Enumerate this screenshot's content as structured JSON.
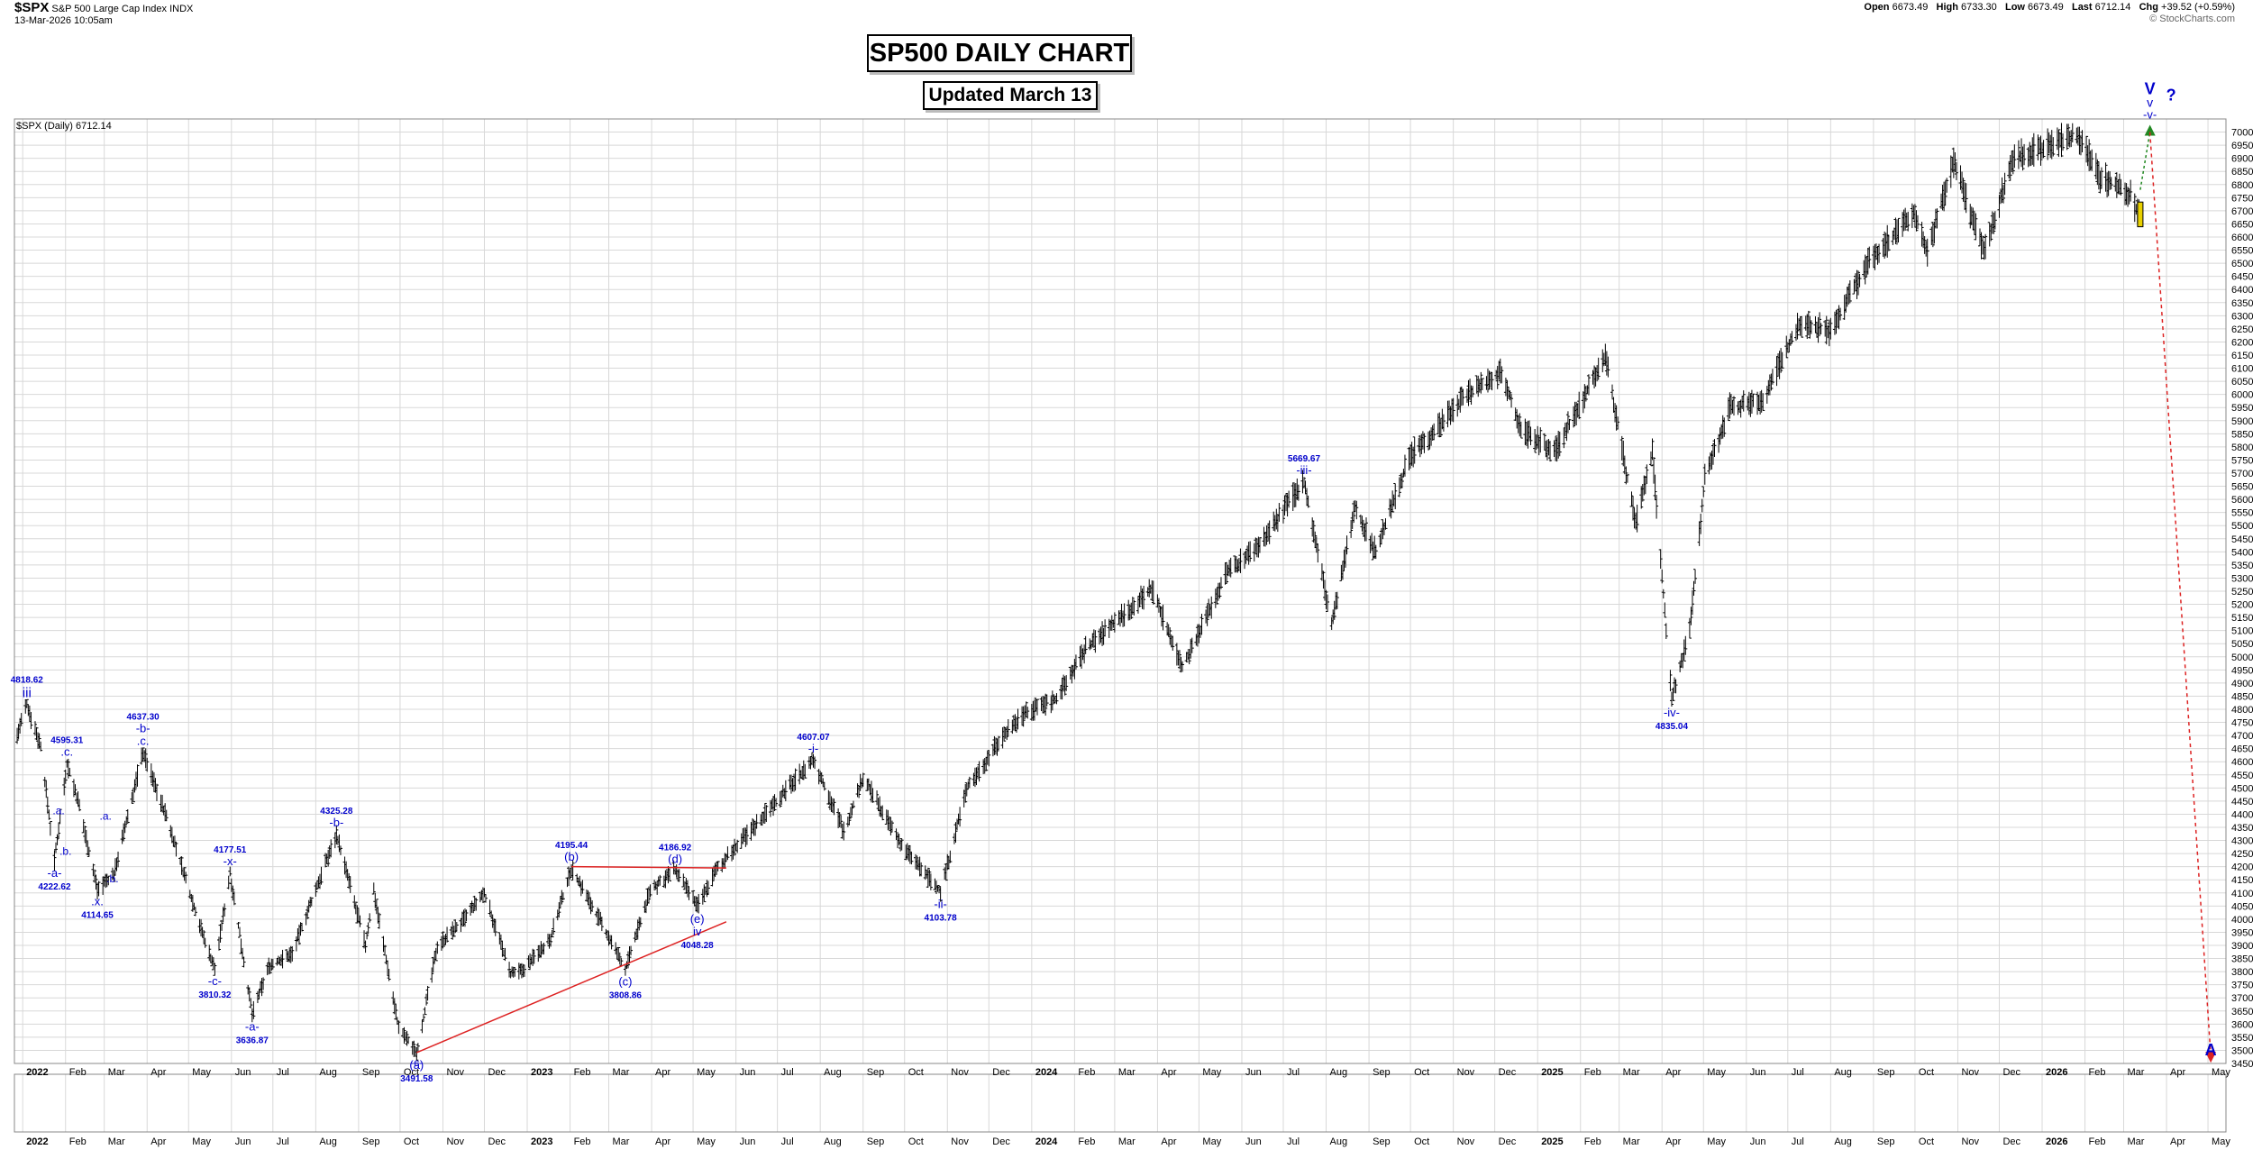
{
  "header": {
    "symbol": "$SPX",
    "name": "S&P 500 Large Cap Index",
    "exchange": "INDX",
    "datetime": "13-Mar-2026 10:05am",
    "open_label": "Open",
    "open": "6673.49",
    "high_label": "High",
    "high": "6733.30",
    "low_label": "Low",
    "low": "6673.49",
    "last_label": "Last",
    "last": "6712.14",
    "chg_label": "Chg",
    "chg": "+39.52 (+0.59%)",
    "brand": "© StockCharts.com"
  },
  "legend": "$SPX (Daily) 6712.14",
  "title_box": "SP500 DAILY CHART",
  "subtitle_box": "Updated March 13",
  "colors": {
    "bars": "#000000",
    "labels": "#0000cc",
    "trendline": "#dd2222",
    "target_down": "#dd2222",
    "target_up": "#228822",
    "last_bar": "#e8d000",
    "grid": "#d8d8d8"
  },
  "chart_data": {
    "type": "line",
    "title": "SP500 DAILY CHART",
    "subtitle": "Updated March 13",
    "ylim": [
      3450,
      7050
    ],
    "y_ticks": [
      3450,
      3500,
      3550,
      3600,
      3650,
      3700,
      3750,
      3800,
      3850,
      3900,
      3950,
      4000,
      4050,
      4100,
      4150,
      4200,
      4250,
      4300,
      4350,
      4400,
      4450,
      4500,
      4550,
      4600,
      4650,
      4700,
      4750,
      4800,
      4850,
      4900,
      4950,
      5000,
      5050,
      5100,
      5150,
      5200,
      5250,
      5300,
      5350,
      5400,
      5450,
      5500,
      5550,
      5600,
      5650,
      5700,
      5750,
      5800,
      5850,
      5900,
      5950,
      6000,
      6050,
      6100,
      6150,
      6200,
      6250,
      6300,
      6350,
      6400,
      6450,
      6500,
      6550,
      6600,
      6650,
      6700,
      6750,
      6800,
      6850,
      6900,
      6950,
      7000
    ],
    "x_ticks": [
      "2022",
      "Feb",
      "Mar",
      "Apr",
      "May",
      "Jun",
      "Jul",
      "Aug",
      "Sep",
      "Oct",
      "Nov",
      "Dec",
      "2023",
      "Feb",
      "Mar",
      "Apr",
      "May",
      "Jun",
      "Jul",
      "Aug",
      "Sep",
      "Oct",
      "Nov",
      "Dec",
      "2024",
      "Feb",
      "Mar",
      "Apr",
      "May",
      "Jun",
      "Jul",
      "Aug",
      "Sep",
      "Oct",
      "Nov",
      "Dec",
      "2025",
      "Feb",
      "Mar",
      "Apr",
      "May",
      "Jun",
      "Jul",
      "Aug",
      "Sep",
      "Oct",
      "Nov",
      "Dec",
      "2026",
      "Feb",
      "Mar",
      "Apr",
      "May"
    ],
    "x_tick_bold": [
      "2022",
      "2023",
      "2024",
      "2025",
      "2026"
    ],
    "series": [
      {
        "values": [
          [
            "2021-12-28",
            4700
          ],
          [
            "2022-01-04",
            4818.62
          ],
          [
            "2022-01-14",
            4660
          ],
          [
            "2022-01-24",
            4222.62
          ],
          [
            "2022-02-02",
            4595.31
          ],
          [
            "2022-02-10",
            4450
          ],
          [
            "2022-02-24",
            4114.65
          ],
          [
            "2022-03-08",
            4170
          ],
          [
            "2022-03-29",
            4637.3
          ],
          [
            "2022-04-15",
            4390
          ],
          [
            "2022-05-12",
            3930
          ],
          [
            "2022-05-20",
            3810.32
          ],
          [
            "2022-05-31",
            4177.51
          ],
          [
            "2022-06-16",
            3636.87
          ],
          [
            "2022-06-28",
            3820
          ],
          [
            "2022-07-15",
            3870
          ],
          [
            "2022-08-16",
            4325.28
          ],
          [
            "2022-09-06",
            3900
          ],
          [
            "2022-09-12",
            4110
          ],
          [
            "2022-09-30",
            3585
          ],
          [
            "2022-10-13",
            3491.58
          ],
          [
            "2022-10-28",
            3900
          ],
          [
            "2022-11-15",
            3990
          ],
          [
            "2022-12-01",
            4100
          ],
          [
            "2022-12-20",
            3790
          ],
          [
            "2022-12-28",
            3800
          ],
          [
            "2023-01-18",
            3930
          ],
          [
            "2023-02-02",
            4195.44
          ],
          [
            "2023-02-24",
            3980
          ],
          [
            "2023-03-13",
            3808.86
          ],
          [
            "2023-03-31",
            4110
          ],
          [
            "2023-04-18",
            4186.92
          ],
          [
            "2023-05-04",
            4048.28
          ],
          [
            "2023-05-18",
            4190
          ],
          [
            "2023-06-12",
            4340
          ],
          [
            "2023-06-30",
            4450
          ],
          [
            "2023-07-27",
            4607.07
          ],
          [
            "2023-08-18",
            4335
          ],
          [
            "2023-09-01",
            4540
          ],
          [
            "2023-09-29",
            4280
          ],
          [
            "2023-10-27",
            4103.78
          ],
          [
            "2023-11-15",
            4500
          ],
          [
            "2023-12-14",
            4720
          ],
          [
            "2023-12-28",
            4790
          ],
          [
            "2024-01-19",
            4840
          ],
          [
            "2024-02-09",
            5030
          ],
          [
            "2024-03-28",
            5260
          ],
          [
            "2024-04-19",
            4960
          ],
          [
            "2024-05-21",
            5320
          ],
          [
            "2024-06-14",
            5430
          ],
          [
            "2024-07-16",
            5669.67
          ],
          [
            "2024-08-05",
            5120
          ],
          [
            "2024-08-22",
            5570
          ],
          [
            "2024-09-06",
            5400
          ],
          [
            "2024-09-30",
            5760
          ],
          [
            "2024-11-11",
            6000
          ],
          [
            "2024-12-06",
            6090
          ],
          [
            "2024-12-20",
            5870
          ],
          [
            "2025-01-13",
            5780
          ],
          [
            "2025-02-19",
            6147
          ],
          [
            "2025-03-13",
            5505
          ],
          [
            "2025-03-25",
            5780
          ],
          [
            "2025-04-08",
            4835.04
          ],
          [
            "2025-04-21",
            5100
          ],
          [
            "2025-05-02",
            5680
          ],
          [
            "2025-05-20",
            5950
          ],
          [
            "2025-06-13",
            5980
          ],
          [
            "2025-07-10",
            6280
          ],
          [
            "2025-08-01",
            6240
          ],
          [
            "2025-08-28",
            6500
          ],
          [
            "2025-09-30",
            6690
          ],
          [
            "2025-10-10",
            6550
          ],
          [
            "2025-10-29",
            6890
          ],
          [
            "2025-11-20",
            6540
          ],
          [
            "2025-12-11",
            6900
          ],
          [
            "2025-12-26",
            6930
          ],
          [
            "2026-01-27",
            6990
          ],
          [
            "2026-02-12",
            6830
          ],
          [
            "2026-03-06",
            6760
          ],
          [
            "2026-03-11",
            6690
          ],
          [
            "2026-03-13",
            6712.14
          ]
        ]
      }
    ],
    "annotations": [
      {
        "label": "iii",
        "value": "4818.62",
        "date": "2022-01-04",
        "pos": "above",
        "size": "m"
      },
      {
        "label": "-a-",
        "value": "4222.62",
        "date": "2022-01-24",
        "pos": "below",
        "size": "s"
      },
      {
        "label": ".c.",
        "value": "4595.31",
        "date": "2022-02-02",
        "pos": "above",
        "size": "s"
      },
      {
        "label": ".x.",
        "value": "4114.65",
        "date": "2022-02-24",
        "pos": "below",
        "size": "s"
      },
      {
        "label": "-b-\n.c.",
        "value": "4637.30",
        "date": "2022-03-29",
        "pos": "above",
        "size": "s"
      },
      {
        "label": "-c-",
        "value": "3810.32",
        "date": "2022-05-20",
        "pos": "below",
        "size": "s"
      },
      {
        "label": "-x-",
        "value": "4177.51",
        "date": "2022-05-31",
        "pos": "above",
        "size": "s"
      },
      {
        "label": "-a-",
        "value": "3636.87",
        "date": "2022-06-16",
        "pos": "below",
        "size": "s"
      },
      {
        "label": "-b-",
        "value": "4325.28",
        "date": "2022-08-16",
        "pos": "above",
        "size": "s"
      },
      {
        "label": "(a)",
        "value": "3491.58",
        "date": "2022-10-13",
        "pos": "below",
        "size": "s"
      },
      {
        "label": "(b)",
        "value": "4195.44",
        "date": "2023-02-02",
        "pos": "above",
        "size": "s"
      },
      {
        "label": "(c)",
        "value": "3808.86",
        "date": "2023-03-13",
        "pos": "below",
        "size": "s"
      },
      {
        "label": "(d)",
        "value": "4186.92",
        "date": "2023-04-18",
        "pos": "above",
        "size": "s"
      },
      {
        "label": "(e)\niv",
        "value": "4048.28",
        "date": "2023-05-04",
        "pos": "below",
        "size": "s"
      },
      {
        "label": "-i-",
        "value": "4607.07",
        "date": "2023-07-27",
        "pos": "above",
        "size": "s"
      },
      {
        "label": "-ii-",
        "value": "4103.78",
        "date": "2023-10-27",
        "pos": "below",
        "size": "s"
      },
      {
        "label": "-iii-",
        "value": "5669.67",
        "date": "2024-07-16",
        "pos": "above",
        "size": "s"
      },
      {
        "label": "-iv-",
        "value": "4835.04",
        "date": "2025-04-08",
        "pos": "below",
        "size": "s"
      }
    ],
    "small_labels": [
      {
        "text": ".a.",
        "date": "2022-01-27",
        "y": 4400
      },
      {
        "text": ".b.",
        "date": "2022-02-01",
        "y": 4245
      },
      {
        "text": ".a.",
        "date": "2022-03-02",
        "y": 4380
      },
      {
        "text": ".b.",
        "date": "2022-03-07",
        "y": 4140
      },
      {
        "text": "-c-",
        "date": "2022-10-13",
        "y": 3440
      }
    ],
    "wave_targets": [
      {
        "lines": [
          "V",
          "v",
          "-v-"
        ],
        "question": "?",
        "date": "2026-03-20",
        "y": 7010
      },
      {
        "lines": [
          "A"
        ],
        "date": "2026-05-03",
        "y": 3440
      }
    ],
    "trendlines": [
      {
        "from": [
          "2022-10-13",
          3491.58
        ],
        "to": [
          "2023-05-25",
          3990
        ]
      },
      {
        "from": [
          "2023-02-02",
          4200
        ],
        "to": [
          "2023-05-25",
          4195
        ]
      }
    ],
    "projection_up": {
      "from": [
        "2026-03-13",
        6780
      ],
      "to": [
        "2026-03-20",
        7000
      ]
    },
    "projection_down": {
      "from": [
        "2026-03-20",
        7000
      ],
      "to": [
        "2026-05-03",
        3480
      ]
    }
  }
}
